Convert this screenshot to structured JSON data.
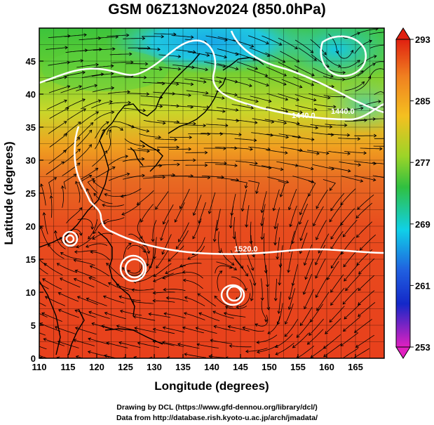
{
  "title": "GSM 06Z13Nov2024 (850.0hPa)",
  "axes": {
    "xlabel": "Longitude (degrees)",
    "ylabel": "Latitude  (degrees)",
    "x_ticks": [
      "110",
      "115",
      "120",
      "125",
      "130",
      "135",
      "140",
      "145",
      "150",
      "155",
      "160",
      "165"
    ],
    "y_ticks": [
      "0",
      "5",
      "10",
      "15",
      "20",
      "25",
      "30",
      "35",
      "40",
      "45"
    ],
    "xlim": [
      110,
      170
    ],
    "ylim": [
      0,
      50
    ]
  },
  "colorbar": {
    "ticks": [
      "293",
      "285",
      "277",
      "269",
      "261",
      "253"
    ],
    "min": 253,
    "max": 293
  },
  "contour_labels": [
    "1440.0",
    "1440.0",
    "1520.0"
  ],
  "footer": {
    "line1": "Drawing by DCL (https://www.gfd-dennou.org/library/dcl/)",
    "line2": "Data from http://database.rish.kyoto-u.ac.jp/arch/jmadata/"
  },
  "colors": {
    "warm": "#e8401c",
    "mid": "#f4b41e",
    "green": "#3cc43c",
    "cyan": "#10d0e8",
    "blue": "#1434d4",
    "magenta": "#d818c8"
  }
}
